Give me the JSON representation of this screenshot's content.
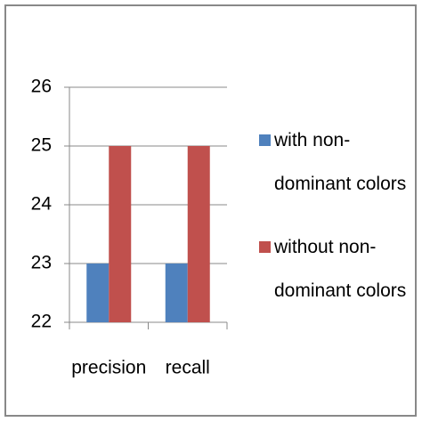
{
  "chart_data": {
    "type": "bar",
    "categories": [
      "precision",
      "recall"
    ],
    "series": [
      {
        "name": "with non-dominant colors",
        "color": "#4f81bd",
        "values": [
          23,
          23
        ]
      },
      {
        "name": "without non-dominant colors",
        "color": "#c0504d",
        "values": [
          25,
          25
        ]
      }
    ],
    "ylim": [
      22,
      26
    ],
    "yticks": [
      22,
      23,
      24,
      25,
      26
    ],
    "grid": true,
    "legend": "right"
  }
}
